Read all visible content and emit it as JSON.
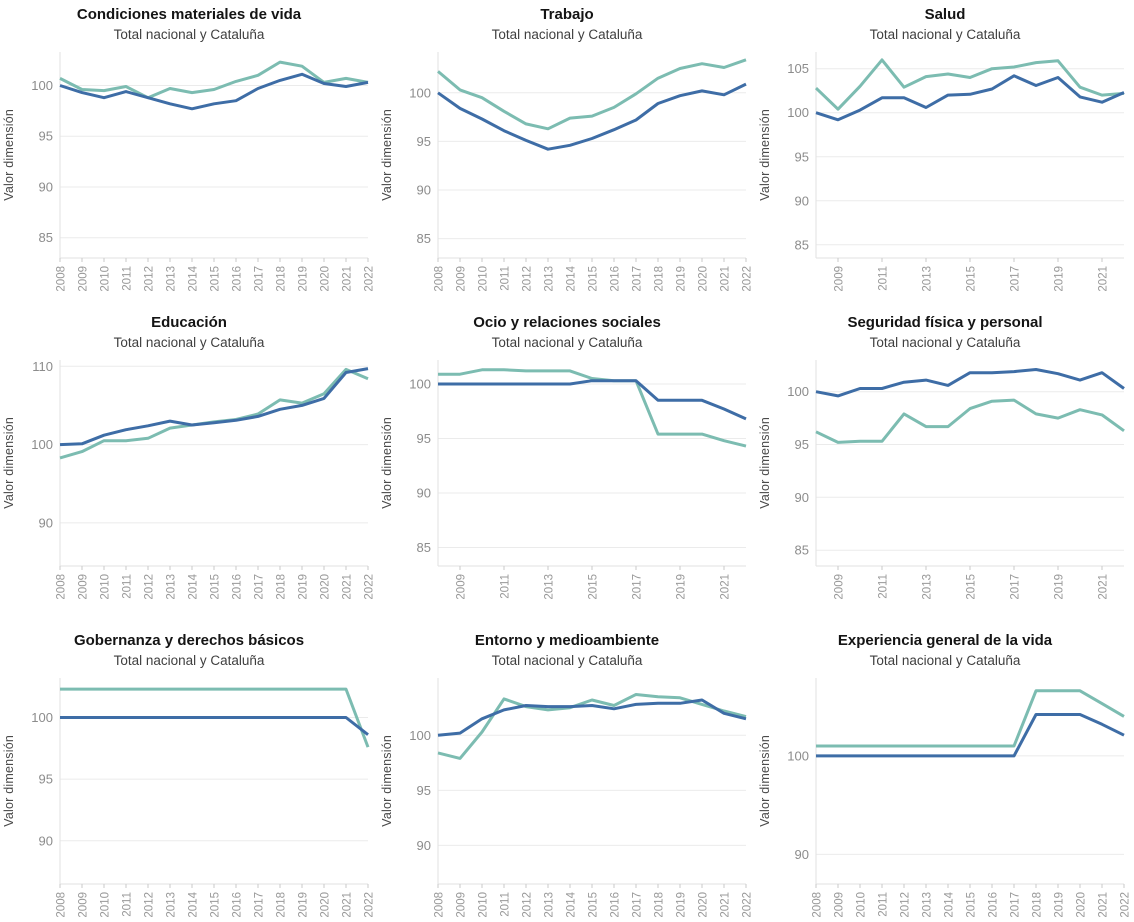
{
  "colors": {
    "nacional_line": "#3e6da6",
    "cataluna_line": "#7cbcb1",
    "gridline": "#ebebeb",
    "axis_spine": "#e2e2e2",
    "tick_label": "#8c8c8c",
    "title_text": "#141414",
    "subtitle_text": "#3f3f3f"
  },
  "chart_data": [
    {
      "type": "line",
      "title": "Condiciones materiales de vida",
      "subtitle": "Total nacional y Cataluña",
      "ylabel": "Valor dimensión",
      "x": [
        2008,
        2009,
        2010,
        2011,
        2012,
        2013,
        2014,
        2015,
        2016,
        2017,
        2018,
        2019,
        2020,
        2021,
        2022
      ],
      "x_ticks": [
        2008,
        2009,
        2010,
        2011,
        2012,
        2013,
        2014,
        2015,
        2016,
        2017,
        2018,
        2019,
        2020,
        2021,
        2022
      ],
      "y_ticks": [
        85,
        90,
        95,
        100
      ],
      "ylim": [
        83.0,
        103.3
      ],
      "grid": "horizontal",
      "legend": "none",
      "series": [
        {
          "name": "Total nacional",
          "color": "#3e6da6",
          "values": [
            100.0,
            99.3,
            98.8,
            99.4,
            98.8,
            98.2,
            97.7,
            98.2,
            98.5,
            99.7,
            100.5,
            101.1,
            100.2,
            99.9,
            100.3
          ]
        },
        {
          "name": "Cataluña",
          "color": "#7cbcb1",
          "values": [
            100.7,
            99.6,
            99.5,
            99.9,
            98.8,
            99.7,
            99.3,
            99.6,
            100.4,
            101.0,
            102.3,
            101.9,
            100.3,
            100.7,
            100.3
          ]
        }
      ]
    },
    {
      "type": "line",
      "title": "Trabajo",
      "subtitle": "Total nacional y Cataluña",
      "ylabel": "Valor dimensión",
      "x": [
        2008,
        2009,
        2010,
        2011,
        2012,
        2013,
        2014,
        2015,
        2016,
        2017,
        2018,
        2019,
        2020,
        2021,
        2022
      ],
      "x_ticks": [
        2008,
        2009,
        2010,
        2011,
        2012,
        2013,
        2014,
        2015,
        2016,
        2017,
        2018,
        2019,
        2020,
        2021,
        2022
      ],
      "y_ticks": [
        85,
        90,
        95,
        100
      ],
      "ylim": [
        83.0,
        104.2
      ],
      "grid": "horizontal",
      "legend": "none",
      "series": [
        {
          "name": "Total nacional",
          "color": "#3e6da6",
          "values": [
            100.0,
            98.4,
            97.3,
            96.1,
            95.1,
            94.2,
            94.6,
            95.3,
            96.2,
            97.2,
            98.9,
            99.7,
            100.2,
            99.8,
            100.9
          ]
        },
        {
          "name": "Cataluña",
          "color": "#7cbcb1",
          "values": [
            102.2,
            100.3,
            99.5,
            98.1,
            96.8,
            96.3,
            97.4,
            97.6,
            98.5,
            99.9,
            101.5,
            102.5,
            103.0,
            102.6,
            103.4
          ]
        }
      ]
    },
    {
      "type": "line",
      "title": "Salud",
      "subtitle": "Total nacional y Cataluña",
      "ylabel": "Valor dimensión",
      "x": [
        2008,
        2009,
        2010,
        2011,
        2012,
        2013,
        2014,
        2015,
        2016,
        2017,
        2018,
        2019,
        2020,
        2021,
        2022
      ],
      "x_ticks": [
        2009,
        2011,
        2013,
        2015,
        2017,
        2019,
        2021
      ],
      "y_ticks": [
        85,
        90,
        95,
        100,
        105
      ],
      "ylim": [
        83.5,
        106.9
      ],
      "grid": "horizontal",
      "legend": "none",
      "series": [
        {
          "name": "Total nacional",
          "color": "#3e6da6",
          "values": [
            100.0,
            99.2,
            100.3,
            101.7,
            101.7,
            100.6,
            102.0,
            102.1,
            102.7,
            104.2,
            103.1,
            104.0,
            101.8,
            101.2,
            102.3
          ]
        },
        {
          "name": "Cataluña",
          "color": "#7cbcb1",
          "values": [
            102.8,
            100.4,
            103.0,
            106.0,
            102.9,
            104.1,
            104.4,
            104.0,
            105.0,
            105.2,
            105.7,
            105.9,
            102.9,
            102.0,
            102.2
          ]
        }
      ]
    },
    {
      "type": "line",
      "title": "Educación",
      "subtitle": "Total nacional y Cataluña",
      "ylabel": "Valor dimensión",
      "x": [
        2008,
        2009,
        2010,
        2011,
        2012,
        2013,
        2014,
        2015,
        2016,
        2017,
        2018,
        2019,
        2020,
        2021,
        2022
      ],
      "x_ticks": [
        2008,
        2009,
        2010,
        2011,
        2012,
        2013,
        2014,
        2015,
        2016,
        2017,
        2018,
        2019,
        2020,
        2021,
        2022
      ],
      "y_ticks": [
        90,
        100,
        110
      ],
      "ylim": [
        84.5,
        110.8
      ],
      "grid": "horizontal",
      "legend": "none",
      "series": [
        {
          "name": "Total nacional",
          "color": "#3e6da6",
          "values": [
            100.0,
            100.1,
            101.2,
            101.9,
            102.4,
            103.0,
            102.5,
            102.8,
            103.1,
            103.6,
            104.5,
            105.0,
            105.9,
            109.2,
            109.7
          ]
        },
        {
          "name": "Cataluña",
          "color": "#7cbcb1",
          "values": [
            98.3,
            99.1,
            100.5,
            100.5,
            100.8,
            102.1,
            102.5,
            102.9,
            103.2,
            103.9,
            105.7,
            105.3,
            106.5,
            109.6,
            108.4
          ]
        }
      ]
    },
    {
      "type": "line",
      "title": "Ocio y relaciones sociales",
      "subtitle": "Total nacional y Cataluña",
      "ylabel": "Valor dimensión",
      "x": [
        2008,
        2009,
        2010,
        2011,
        2012,
        2013,
        2014,
        2015,
        2016,
        2017,
        2018,
        2019,
        2020,
        2021,
        2022
      ],
      "x_ticks": [
        2009,
        2011,
        2013,
        2015,
        2017,
        2019,
        2021
      ],
      "y_ticks": [
        85,
        90,
        95,
        100
      ],
      "ylim": [
        83.3,
        102.2
      ],
      "grid": "horizontal",
      "legend": "none",
      "series": [
        {
          "name": "Total nacional",
          "color": "#3e6da6",
          "values": [
            100.0,
            100.0,
            100.0,
            100.0,
            100.0,
            100.0,
            100.0,
            100.3,
            100.3,
            100.3,
            98.5,
            98.5,
            98.5,
            97.7,
            96.8
          ]
        },
        {
          "name": "Cataluña",
          "color": "#7cbcb1",
          "values": [
            100.9,
            100.9,
            101.3,
            101.3,
            101.2,
            101.2,
            101.2,
            100.5,
            100.3,
            100.3,
            95.4,
            95.4,
            95.4,
            94.8,
            94.3
          ]
        }
      ]
    },
    {
      "type": "line",
      "title": "Seguridad física y personal",
      "subtitle": "Total nacional y Cataluña",
      "ylabel": "Valor dimensión",
      "x": [
        2008,
        2009,
        2010,
        2011,
        2012,
        2013,
        2014,
        2015,
        2016,
        2017,
        2018,
        2019,
        2020,
        2021,
        2022
      ],
      "x_ticks": [
        2009,
        2011,
        2013,
        2015,
        2017,
        2019,
        2021
      ],
      "y_ticks": [
        85,
        90,
        95,
        100
      ],
      "ylim": [
        83.5,
        103.0
      ],
      "grid": "horizontal",
      "legend": "none",
      "series": [
        {
          "name": "Total nacional",
          "color": "#3e6da6",
          "values": [
            100.0,
            99.6,
            100.3,
            100.3,
            100.9,
            101.1,
            100.6,
            101.8,
            101.8,
            101.9,
            102.1,
            101.7,
            101.1,
            101.8,
            100.3
          ]
        },
        {
          "name": "Cataluña",
          "color": "#7cbcb1",
          "values": [
            96.2,
            95.2,
            95.3,
            95.3,
            97.9,
            96.7,
            96.7,
            98.4,
            99.1,
            99.2,
            97.9,
            97.5,
            98.3,
            97.8,
            96.3
          ]
        }
      ]
    },
    {
      "type": "line",
      "title": "Gobernanza y derechos básicos",
      "subtitle": "Total nacional y Cataluña",
      "ylabel": "Valor dimensión",
      "x": [
        2008,
        2009,
        2010,
        2011,
        2012,
        2013,
        2014,
        2015,
        2016,
        2017,
        2018,
        2019,
        2020,
        2021,
        2022
      ],
      "x_ticks": [
        2008,
        2009,
        2010,
        2011,
        2012,
        2013,
        2014,
        2015,
        2016,
        2017,
        2018,
        2019,
        2020,
        2021,
        2022
      ],
      "y_ticks": [
        90,
        95,
        100
      ],
      "ylim": [
        86.5,
        103.2
      ],
      "grid": "horizontal",
      "legend": "none",
      "series": [
        {
          "name": "Total nacional",
          "color": "#3e6da6",
          "values": [
            100.0,
            100.0,
            100.0,
            100.0,
            100.0,
            100.0,
            100.0,
            100.0,
            100.0,
            100.0,
            100.0,
            100.0,
            100.0,
            100.0,
            98.6
          ]
        },
        {
          "name": "Cataluña",
          "color": "#7cbcb1",
          "values": [
            102.3,
            102.3,
            102.3,
            102.3,
            102.3,
            102.3,
            102.3,
            102.3,
            102.3,
            102.3,
            102.3,
            102.3,
            102.3,
            102.3,
            97.6
          ]
        }
      ]
    },
    {
      "type": "line",
      "title": "Entorno y medioambiente",
      "subtitle": "Total nacional y Cataluña",
      "ylabel": "Valor dimensión",
      "x": [
        2008,
        2009,
        2010,
        2011,
        2012,
        2013,
        2014,
        2015,
        2016,
        2017,
        2018,
        2019,
        2020,
        2021,
        2022
      ],
      "x_ticks": [
        2008,
        2009,
        2010,
        2011,
        2012,
        2013,
        2014,
        2015,
        2016,
        2017,
        2018,
        2019,
        2020,
        2021,
        2022
      ],
      "y_ticks": [
        90,
        95,
        100
      ],
      "ylim": [
        86.5,
        105.2
      ],
      "grid": "horizontal",
      "legend": "none",
      "series": [
        {
          "name": "Total nacional",
          "color": "#3e6da6",
          "values": [
            100.0,
            100.2,
            101.5,
            102.3,
            102.7,
            102.6,
            102.6,
            102.7,
            102.4,
            102.8,
            102.9,
            102.9,
            103.2,
            102.0,
            101.5
          ]
        },
        {
          "name": "Cataluña",
          "color": "#7cbcb1",
          "values": [
            98.4,
            97.9,
            100.3,
            103.3,
            102.6,
            102.3,
            102.5,
            103.2,
            102.7,
            103.7,
            103.5,
            103.4,
            102.8,
            102.2,
            101.7
          ]
        }
      ]
    },
    {
      "type": "line",
      "title": "Experiencia general de la vida",
      "subtitle": "Total nacional y Cataluña",
      "ylabel": "Valor dimensión",
      "x": [
        2008,
        2009,
        2010,
        2011,
        2012,
        2013,
        2014,
        2015,
        2016,
        2017,
        2018,
        2019,
        2020,
        2021,
        2022
      ],
      "x_ticks": [
        2008,
        2009,
        2010,
        2011,
        2012,
        2013,
        2014,
        2015,
        2016,
        2017,
        2018,
        2019,
        2020,
        2021,
        2022
      ],
      "y_ticks": [
        90,
        100
      ],
      "ylim": [
        87.0,
        107.9
      ],
      "grid": "horizontal",
      "legend": "none",
      "series": [
        {
          "name": "Total nacional",
          "color": "#3e6da6",
          "values": [
            100.0,
            100.0,
            100.0,
            100.0,
            100.0,
            100.0,
            100.0,
            100.0,
            100.0,
            100.0,
            104.2,
            104.2,
            104.2,
            103.2,
            102.1
          ]
        },
        {
          "name": "Cataluña",
          "color": "#7cbcb1",
          "values": [
            101.0,
            101.0,
            101.0,
            101.0,
            101.0,
            101.0,
            101.0,
            101.0,
            101.0,
            101.0,
            106.6,
            106.6,
            106.6,
            105.3,
            104.0
          ]
        }
      ]
    }
  ]
}
